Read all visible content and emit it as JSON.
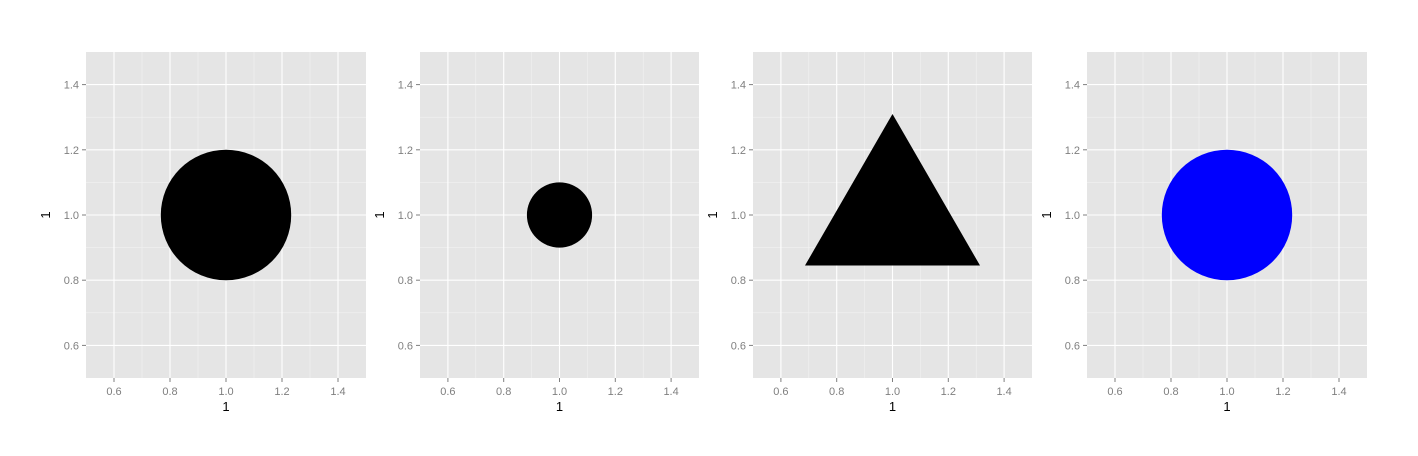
{
  "chart_data": [
    {
      "type": "scatter",
      "xlabel": "1",
      "ylabel": "1",
      "xlim": [
        0.5,
        1.5
      ],
      "ylim": [
        0.5,
        1.5
      ],
      "xticks": [
        0.6,
        0.8,
        1.0,
        1.2,
        1.4
      ],
      "yticks": [
        0.6,
        0.8,
        1.0,
        1.2,
        1.4
      ],
      "xtick_labels": [
        "0.6",
        "0.8",
        "1.0",
        "1.2",
        "1.4"
      ],
      "ytick_labels": [
        "0.6",
        "0.8",
        "1.0",
        "1.2",
        "1.4"
      ],
      "grid": true,
      "points": [
        {
          "x": 1,
          "y": 1,
          "shape": "circle",
          "size": "large",
          "color": "#000000"
        }
      ]
    },
    {
      "type": "scatter",
      "xlabel": "1",
      "ylabel": "1",
      "xlim": [
        0.5,
        1.5
      ],
      "ylim": [
        0.5,
        1.5
      ],
      "xticks": [
        0.6,
        0.8,
        1.0,
        1.2,
        1.4
      ],
      "yticks": [
        0.6,
        0.8,
        1.0,
        1.2,
        1.4
      ],
      "xtick_labels": [
        "0.6",
        "0.8",
        "1.0",
        "1.2",
        "1.4"
      ],
      "ytick_labels": [
        "0.6",
        "0.8",
        "1.0",
        "1.2",
        "1.4"
      ],
      "grid": true,
      "points": [
        {
          "x": 1,
          "y": 1,
          "shape": "circle",
          "size": "small",
          "color": "#000000"
        }
      ]
    },
    {
      "type": "scatter",
      "xlabel": "1",
      "ylabel": "1",
      "xlim": [
        0.5,
        1.5
      ],
      "ylim": [
        0.5,
        1.5
      ],
      "xticks": [
        0.6,
        0.8,
        1.0,
        1.2,
        1.4
      ],
      "yticks": [
        0.6,
        0.8,
        1.0,
        1.2,
        1.4
      ],
      "xtick_labels": [
        "0.6",
        "0.8",
        "1.0",
        "1.2",
        "1.4"
      ],
      "ytick_labels": [
        "0.6",
        "0.8",
        "1.0",
        "1.2",
        "1.4"
      ],
      "grid": true,
      "points": [
        {
          "x": 1,
          "y": 1,
          "shape": "triangle",
          "size": "large",
          "color": "#000000"
        }
      ]
    },
    {
      "type": "scatter",
      "xlabel": "1",
      "ylabel": "1",
      "xlim": [
        0.5,
        1.5
      ],
      "ylim": [
        0.5,
        1.5
      ],
      "xticks": [
        0.6,
        0.8,
        1.0,
        1.2,
        1.4
      ],
      "yticks": [
        0.6,
        0.8,
        1.0,
        1.2,
        1.4
      ],
      "xtick_labels": [
        "0.6",
        "0.8",
        "1.0",
        "1.2",
        "1.4"
      ],
      "ytick_labels": [
        "0.6",
        "0.8",
        "1.0",
        "1.2",
        "1.4"
      ],
      "grid": true,
      "points": [
        {
          "x": 1,
          "y": 1,
          "shape": "circle",
          "size": "large",
          "color": "#0000ff"
        }
      ]
    }
  ]
}
